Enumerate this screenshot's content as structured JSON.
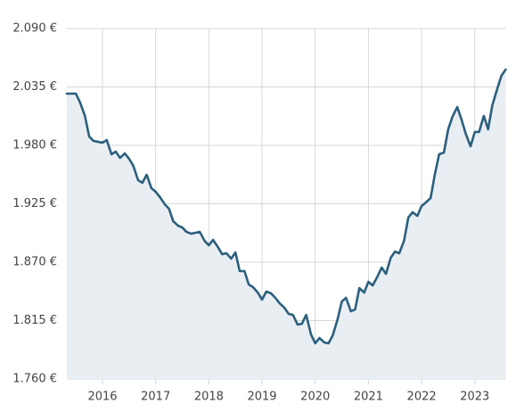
{
  "chart_data": {
    "type": "line",
    "x": [
      2015.33,
      2015.42,
      2015.5,
      2015.58,
      2015.67,
      2015.75,
      2015.83,
      2015.92,
      2016,
      2016.08,
      2016.17,
      2016.25,
      2016.33,
      2016.42,
      2016.5,
      2016.58,
      2016.67,
      2016.75,
      2016.83,
      2016.92,
      2017,
      2017.08,
      2017.17,
      2017.25,
      2017.33,
      2017.42,
      2017.5,
      2017.58,
      2017.67,
      2017.75,
      2017.83,
      2017.92,
      2018,
      2018.08,
      2018.17,
      2018.25,
      2018.33,
      2018.42,
      2018.5,
      2018.58,
      2018.67,
      2018.75,
      2018.83,
      2018.92,
      2019,
      2019.08,
      2019.17,
      2019.25,
      2019.33,
      2019.42,
      2019.5,
      2019.58,
      2019.67,
      2019.75,
      2019.83,
      2019.92,
      2020,
      2020.08,
      2020.17,
      2020.25,
      2020.33,
      2020.42,
      2020.5,
      2020.58,
      2020.67,
      2020.75,
      2020.83,
      2020.92,
      2021,
      2021.08,
      2021.17,
      2021.25,
      2021.33,
      2021.42,
      2021.5,
      2021.58,
      2021.67,
      2021.75,
      2021.83,
      2021.92,
      2022,
      2022.08,
      2022.17,
      2022.25,
      2022.33,
      2022.42,
      2022.5,
      2022.58,
      2022.67,
      2022.75,
      2022.83,
      2022.92,
      2023,
      2023.08,
      2023.17,
      2023.25,
      2023.33,
      2023.42,
      2023.5,
      2023.58
    ],
    "series": [
      {
        "color": "#2b5f7d",
        "fill": "#e9eef3",
        "values": [
          2028.7,
          2028.7,
          2028.7,
          2020.3,
          2007.7,
          1988.4,
          1984.2,
          1983.3,
          1982.5,
          1985,
          1971.6,
          1974.1,
          1968.2,
          1972.4,
          1967.4,
          1960.7,
          1947.2,
          1944.7,
          1952.3,
          1939.7,
          1936.3,
          1931.3,
          1924.6,
          1920.4,
          1908.6,
          1904.4,
          1902.7,
          1898.5,
          1896.8,
          1897.7,
          1898.5,
          1890.1,
          1885.9,
          1891,
          1884.2,
          1877.5,
          1878.4,
          1873.3,
          1879.2,
          1861.6,
          1861.6,
          1849,
          1846.5,
          1841.4,
          1834.7,
          1842.3,
          1840.6,
          1836.4,
          1831.3,
          1827.1,
          1821.3,
          1820.4,
          1811.2,
          1812,
          1820.4,
          1802,
          1793.6,
          1798.6,
          1794.4,
          1793.6,
          1801.1,
          1816.2,
          1833,
          1836.4,
          1823.8,
          1825.5,
          1845.6,
          1841.4,
          1851.5,
          1848.1,
          1856.5,
          1864.9,
          1859,
          1874.2,
          1880,
          1878.4,
          1890.1,
          1912,
          1917,
          1913.6,
          1922.9,
          1926.2,
          1930.4,
          1953.1,
          1971.6,
          1973.3,
          1995.1,
          2006.9,
          2016.1,
          2004.3,
          1990.9,
          1979.1,
          1992.6,
          1992.6,
          2007.7,
          1995.1,
          2017.8,
          2032.9,
          2045.5,
          2051.4
        ]
      }
    ],
    "xlim": [
      2015.33,
      2023.59
    ],
    "xticks": [
      2016,
      2017,
      2018,
      2019,
      2020,
      2021,
      2022,
      2023
    ],
    "ylim": [
      1760,
      2090
    ],
    "yticks": [
      {
        "value": 1760,
        "label": "1.760 €"
      },
      {
        "value": 1815,
        "label": "1.815 €"
      },
      {
        "value": 1870,
        "label": "1.870 €"
      },
      {
        "value": 1925,
        "label": "1.925 €"
      },
      {
        "value": 1980,
        "label": "1.980 €"
      },
      {
        "value": 2035,
        "label": "2.035 €"
      },
      {
        "value": 2090,
        "label": "2.090 €"
      }
    ],
    "grid": true
  }
}
